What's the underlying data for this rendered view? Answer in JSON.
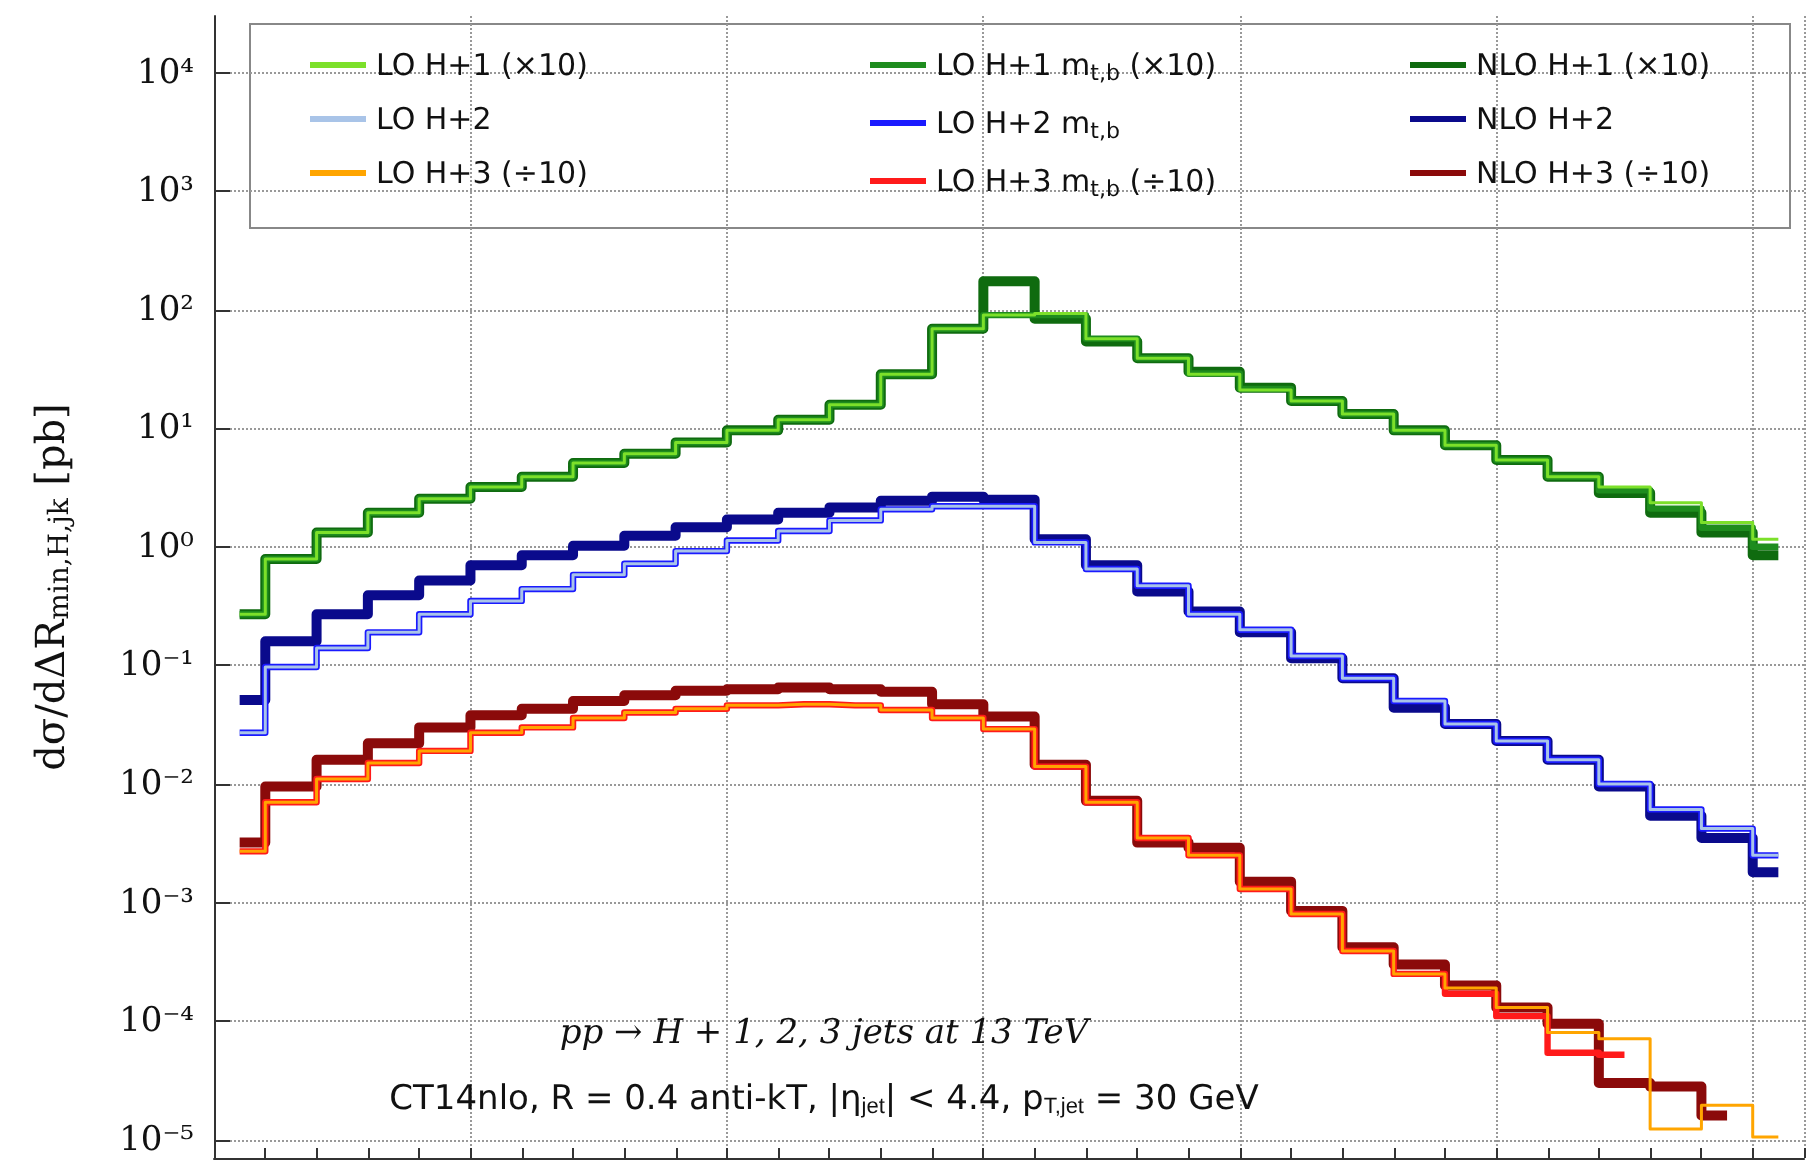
{
  "chart_data": {
    "type": "step",
    "ylabel": "dσ/dΔR$_{min,H,jk}$ [pb]",
    "log": "y",
    "grid": true,
    "legend": "top",
    "marker": "none",
    "line_style": "solid",
    "categories": [
      null,
      null,
      null,
      null,
      null,
      null,
      null,
      null,
      null,
      null,
      null,
      null,
      null,
      null,
      null,
      null,
      null,
      null,
      null,
      null,
      null,
      null,
      null,
      null,
      null,
      null,
      null,
      null,
      null,
      null,
      null
    ],
    "ylim": [
      7e-06,
      30000
    ],
    "yticks": [
      {
        "value": 1e-05,
        "label": "10⁻⁵"
      },
      {
        "value": 0.0001,
        "label": "10⁻⁴"
      },
      {
        "value": 0.001,
        "label": "10⁻³"
      },
      {
        "value": 0.01,
        "label": "10⁻²"
      },
      {
        "value": 0.1,
        "label": "10⁻¹"
      },
      {
        "value": 1,
        "label": "10⁰"
      },
      {
        "value": 10,
        "label": "10¹"
      },
      {
        "value": 100,
        "label": "10²"
      },
      {
        "value": 1000,
        "label": "10³"
      },
      {
        "value": 10000,
        "label": "10⁴"
      }
    ],
    "series": [
      {
        "name": "LO H+1 (×10)",
        "color": "#7ce02a",
        "values": [
          0.27,
          0.79,
          1.32,
          1.94,
          2.54,
          3.2,
          3.9,
          5.1,
          6.1,
          7.6,
          9.6,
          11.8,
          15.8,
          28.5,
          69,
          90,
          93,
          57,
          39,
          28.5,
          21,
          17,
          13.2,
          9.6,
          7.2,
          5.4,
          3.9,
          3.2,
          2.35,
          1.6,
          1.16
        ]
      },
      {
        "name": "LO H+2",
        "color": "#a9c4e8",
        "values": [
          0.027,
          0.097,
          0.14,
          0.19,
          0.27,
          0.35,
          0.44,
          0.58,
          0.72,
          0.92,
          1.13,
          1.36,
          1.67,
          2.07,
          2.2,
          2.2,
          1.09,
          0.65,
          0.47,
          0.27,
          0.2,
          0.12,
          0.078,
          0.05,
          0.032,
          0.023,
          0.016,
          0.01,
          0.0061,
          0.0042,
          0.0025
        ]
      },
      {
        "name": "LO H+3 (÷10)",
        "color": "#ffa500",
        "values": [
          0.0027,
          0.007,
          0.011,
          0.015,
          0.019,
          0.027,
          0.03,
          0.036,
          0.04,
          0.043,
          0.046,
          0.047,
          0.046,
          0.042,
          0.036,
          0.029,
          0.014,
          0.007,
          0.0035,
          0.0025,
          0.0013,
          0.0008,
          0.00039,
          0.00025,
          0.00019,
          0.00013,
          8e-05,
          7.1e-05,
          1.23e-05,
          1.95e-05,
          1.05e-05
        ]
      },
      {
        "name": "LO H+1 m$_{t,b}$ (×10)",
        "color": "#1e8c1e",
        "values": [
          0.27,
          0.79,
          1.32,
          1.94,
          2.54,
          3.2,
          3.9,
          5.1,
          6.1,
          7.6,
          9.6,
          11.8,
          15.8,
          28.5,
          69,
          90,
          90,
          57,
          39,
          29,
          21.5,
          17,
          13.2,
          9.6,
          7.2,
          5.4,
          3.9,
          3,
          2.1,
          1.45,
          1.0
        ]
      },
      {
        "name": "LO H+2 m$_{t,b}$",
        "color": "#1a1aff",
        "values": [
          0.027,
          0.097,
          0.14,
          0.19,
          0.27,
          0.35,
          0.44,
          0.58,
          0.72,
          0.92,
          1.13,
          1.36,
          1.67,
          2.07,
          2.2,
          2.2,
          1.09,
          0.65,
          0.47,
          0.27,
          0.2,
          0.12,
          0.078,
          0.05,
          0.032,
          0.023,
          0.016,
          0.01,
          0.0061,
          0.0042,
          0.0025
        ]
      },
      {
        "name": "LO H+3 m$_{t,b}$ (÷10)",
        "color": "#ff1a1a",
        "values": [
          0.0027,
          0.007,
          0.011,
          0.015,
          0.019,
          0.027,
          0.03,
          0.036,
          0.04,
          0.043,
          0.046,
          0.047,
          0.046,
          0.042,
          0.036,
          0.029,
          0.014,
          0.007,
          0.0035,
          0.0025,
          0.0013,
          0.0008,
          0.00039,
          0.00025,
          0.00017,
          0.00011,
          5.4e-05,
          5.2e-05,
          null,
          null,
          null
        ]
      },
      {
        "name": "NLO H+1 (×10)",
        "color": "#0f6b0f",
        "values": [
          0.27,
          0.79,
          1.32,
          1.94,
          2.54,
          3.2,
          3.9,
          5.1,
          6.1,
          7.6,
          9.6,
          11.8,
          15.8,
          28.5,
          69,
          174,
          84,
          54,
          39,
          30,
          22,
          17,
          13.2,
          9.6,
          7.2,
          5.4,
          3.9,
          2.85,
          1.94,
          1.32,
          0.85
        ]
      },
      {
        "name": "NLO H+2",
        "color": "#0a0a8c",
        "values": [
          0.051,
          0.16,
          0.27,
          0.39,
          0.52,
          0.7,
          0.85,
          1.02,
          1.24,
          1.46,
          1.7,
          1.94,
          2.15,
          2.45,
          2.65,
          2.5,
          1.16,
          0.7,
          0.42,
          0.285,
          0.19,
          0.115,
          0.078,
          0.044,
          0.032,
          0.023,
          0.016,
          0.0095,
          0.0054,
          0.0035,
          0.0018
        ]
      },
      {
        "name": "NLO H+3 (÷10)",
        "color": "#8b0a0a",
        "values": [
          0.0032,
          0.0095,
          0.016,
          0.022,
          0.03,
          0.038,
          0.043,
          0.05,
          0.056,
          0.061,
          0.063,
          0.065,
          0.063,
          0.06,
          0.047,
          0.037,
          0.0145,
          0.0072,
          0.0032,
          0.0029,
          0.0015,
          0.00085,
          0.00042,
          0.0003,
          0.0002,
          0.00013,
          9.5e-05,
          3e-05,
          2.8e-05,
          1.6e-05,
          null
        ]
      }
    ],
    "annotations": [
      "pp → H + 1, 2, 3 jets at 13 TeV",
      "CT14nlo, R = 0.4 anti-kT, |η$_{jet}$| < 4.4, p$_{T,jet}$ = 30 GeV"
    ]
  }
}
